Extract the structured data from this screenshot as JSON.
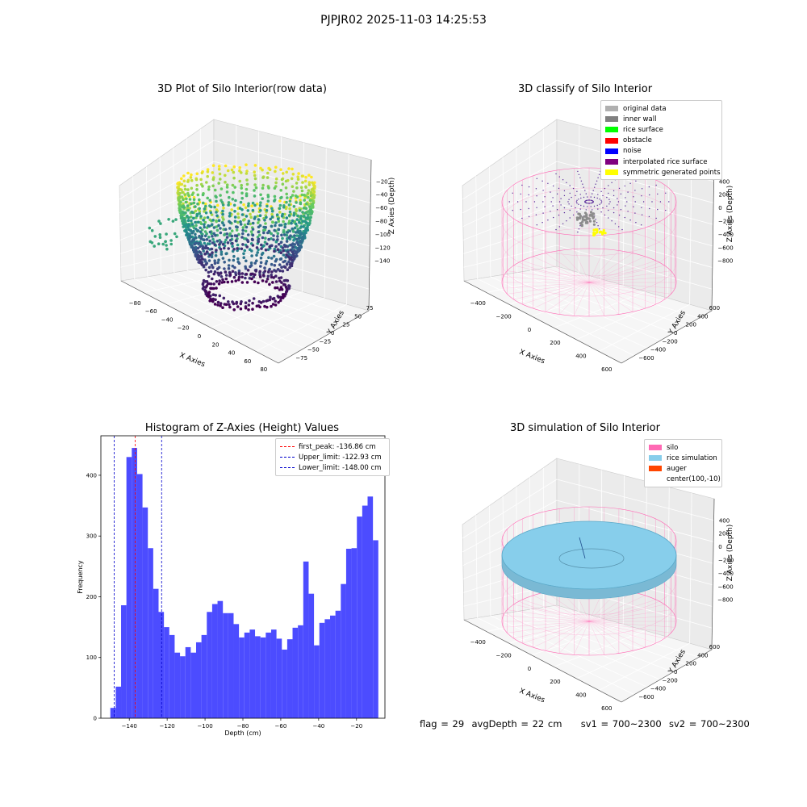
{
  "suptitle": "PJPJR02 2025-11-03 14:25:53",
  "colors": {
    "hist_bar": "#4c4cff",
    "first_peak_line": "#ff0000",
    "limit_line": "#0000cc",
    "silo": "#ff69b4",
    "rice_simulation": "#87ceeb",
    "auger": "#ff4500",
    "viridis_low": "#440154",
    "viridis_mid": "#21918c",
    "viridis_high": "#fde725"
  },
  "plot_raw": {
    "title": "3D Plot of Silo Interior(row data)",
    "xlabel": "X Axies",
    "ylabel": "Y Axies",
    "zlabel": "Z Axies (Depth)",
    "x_ticks": [
      "−80",
      "−60",
      "−40",
      "−20",
      "0",
      "20",
      "40",
      "60",
      "80"
    ],
    "y_ticks": [
      "75",
      "50",
      "25",
      "0",
      "−25",
      "−50",
      "−75"
    ],
    "z_ticks": [
      "−20",
      "−40",
      "−60",
      "−80",
      "−100",
      "−120",
      "−140"
    ]
  },
  "plot_classify": {
    "title": "3D classify of Silo Interior",
    "xlabel": "X Axies",
    "ylabel": "Y Axies",
    "zlabel": "Z Axies (Depth)",
    "x_ticks": [
      "−400",
      "−200",
      "0",
      "200",
      "400",
      "600"
    ],
    "y_ticks": [
      "600",
      "400",
      "200",
      "0",
      "−200",
      "−400",
      "−600"
    ],
    "z_ticks": [
      "400",
      "200",
      "0",
      "−200",
      "−400",
      "−600",
      "−800"
    ],
    "legend": [
      {
        "label": "original data",
        "color": "#b0b0b0"
      },
      {
        "label": "inner wall",
        "color": "#808080"
      },
      {
        "label": "rice surface",
        "color": "#00ff00"
      },
      {
        "label": "obstacle",
        "color": "#ff0000"
      },
      {
        "label": "noise",
        "color": "#0000ff"
      },
      {
        "label": "interpolated rice surface",
        "color": "#800080"
      },
      {
        "label": "symmetric generated points",
        "color": "#ffff00"
      }
    ]
  },
  "plot_simulation": {
    "title": "3D simulation of Silo Interior",
    "xlabel": "X Axies",
    "ylabel": "Y Axies",
    "zlabel": "Z Axies (Depth)",
    "x_ticks": [
      "−400",
      "−200",
      "0",
      "200",
      "400",
      "600"
    ],
    "y_ticks": [
      "600",
      "400",
      "200",
      "0",
      "−200",
      "−400",
      "−600"
    ],
    "z_ticks": [
      "400",
      "200",
      "0",
      "−200",
      "−400",
      "−600",
      "−800"
    ],
    "legend": [
      {
        "label": "silo",
        "color": "#ff69b4"
      },
      {
        "label": "rice simulation",
        "color": "#87ceeb"
      },
      {
        "label": "auger",
        "color": "#ff4500"
      },
      {
        "label": "center(100,-10)",
        "color": ""
      }
    ]
  },
  "footer": {
    "flag": "flag = 29",
    "avg_depth": "avgDepth = 22 cm",
    "sv1": "sv1 = 700~2300",
    "sv2": "sv2 = 700~2300"
  },
  "chart_data": {
    "type": "bar",
    "title": "Histogram of Z-Axies (Height) Values",
    "xlabel": "Depth (cm)",
    "ylabel": "Frequency",
    "xlim": [
      -155,
      -5
    ],
    "ylim": [
      0,
      465
    ],
    "x_ticks": [
      -140,
      -120,
      -100,
      -80,
      -60,
      -40,
      -20
    ],
    "x_tick_labels": [
      "−140",
      "−120",
      "−100",
      "−80",
      "−60",
      "−40",
      "−20"
    ],
    "y_ticks": [
      0,
      100,
      200,
      300,
      400
    ],
    "bin_start": -150,
    "bin_width": 2.83,
    "values": [
      17,
      52,
      186,
      430,
      445,
      402,
      347,
      280,
      213,
      175,
      150,
      137,
      108,
      102,
      117,
      108,
      125,
      137,
      175,
      188,
      193,
      173,
      173,
      155,
      133,
      141,
      146,
      135,
      133,
      141,
      146,
      131,
      113,
      130,
      149,
      153,
      258,
      205,
      120,
      157,
      163,
      169,
      177,
      221,
      279,
      280,
      332,
      350,
      365,
      293
    ],
    "vlines": [
      {
        "label": "first_peak: -136.86 cm",
        "x": -136.86,
        "color": "#ff0000"
      },
      {
        "label": "Upper_limit: -122.93 cm",
        "x": -122.93,
        "color": "#0000cc"
      },
      {
        "label": "Lower_limit: -148.00 cm",
        "x": -148.0,
        "color": "#0000cc"
      }
    ]
  }
}
